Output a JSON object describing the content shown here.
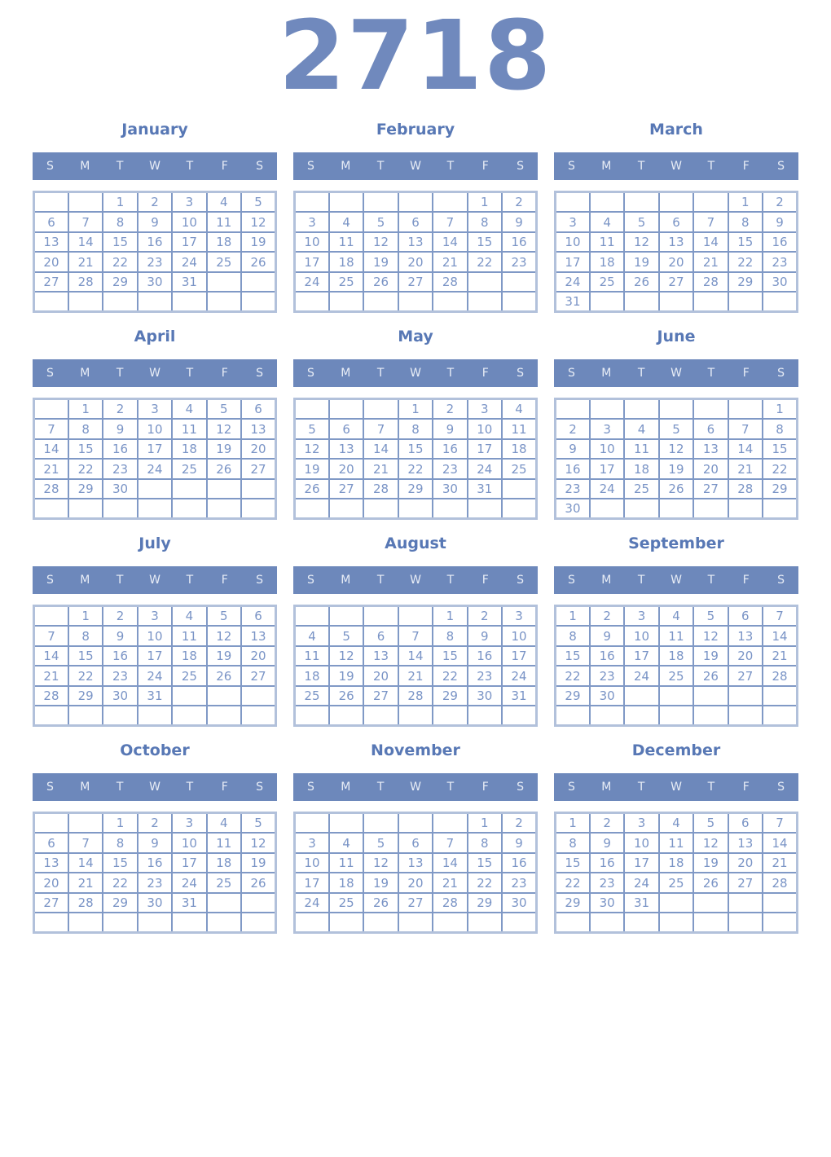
{
  "year": "2718",
  "weekdays": [
    "S",
    "M",
    "T",
    "W",
    "T",
    "F",
    "S"
  ],
  "colors": {
    "band": "#6d88bb",
    "band_text": "#e8edf6",
    "date_text": "#7a94c6",
    "month_title": "#5878b5",
    "year_title": "#7089bd",
    "grid_outer_border": "#b2c1db",
    "grid_inner_border": "#8099c6"
  },
  "months": [
    {
      "name": "January",
      "weeks": [
        [
          "",
          "",
          "1",
          "2",
          "3",
          "4",
          "5"
        ],
        [
          "6",
          "7",
          "8",
          "9",
          "10",
          "11",
          "12"
        ],
        [
          "13",
          "14",
          "15",
          "16",
          "17",
          "18",
          "19"
        ],
        [
          "20",
          "21",
          "22",
          "23",
          "24",
          "25",
          "26"
        ],
        [
          "27",
          "28",
          "29",
          "30",
          "31",
          "",
          ""
        ],
        [
          "",
          "",
          "",
          "",
          "",
          "",
          ""
        ]
      ]
    },
    {
      "name": "February",
      "weeks": [
        [
          "",
          "",
          "",
          "",
          "",
          "1",
          "2"
        ],
        [
          "3",
          "4",
          "5",
          "6",
          "7",
          "8",
          "9"
        ],
        [
          "10",
          "11",
          "12",
          "13",
          "14",
          "15",
          "16"
        ],
        [
          "17",
          "18",
          "19",
          "20",
          "21",
          "22",
          "23"
        ],
        [
          "24",
          "25",
          "26",
          "27",
          "28",
          "",
          ""
        ],
        [
          "",
          "",
          "",
          "",
          "",
          "",
          ""
        ]
      ]
    },
    {
      "name": "March",
      "weeks": [
        [
          "",
          "",
          "",
          "",
          "",
          "1",
          "2"
        ],
        [
          "3",
          "4",
          "5",
          "6",
          "7",
          "8",
          "9"
        ],
        [
          "10",
          "11",
          "12",
          "13",
          "14",
          "15",
          "16"
        ],
        [
          "17",
          "18",
          "19",
          "20",
          "21",
          "22",
          "23"
        ],
        [
          "24",
          "25",
          "26",
          "27",
          "28",
          "29",
          "30"
        ],
        [
          "31",
          "",
          "",
          "",
          "",
          "",
          ""
        ]
      ]
    },
    {
      "name": "April",
      "weeks": [
        [
          "",
          "1",
          "2",
          "3",
          "4",
          "5",
          "6"
        ],
        [
          "7",
          "8",
          "9",
          "10",
          "11",
          "12",
          "13"
        ],
        [
          "14",
          "15",
          "16",
          "17",
          "18",
          "19",
          "20"
        ],
        [
          "21",
          "22",
          "23",
          "24",
          "25",
          "26",
          "27"
        ],
        [
          "28",
          "29",
          "30",
          "",
          "",
          "",
          ""
        ],
        [
          "",
          "",
          "",
          "",
          "",
          "",
          ""
        ]
      ]
    },
    {
      "name": "May",
      "weeks": [
        [
          "",
          "",
          "",
          "1",
          "2",
          "3",
          "4"
        ],
        [
          "5",
          "6",
          "7",
          "8",
          "9",
          "10",
          "11"
        ],
        [
          "12",
          "13",
          "14",
          "15",
          "16",
          "17",
          "18"
        ],
        [
          "19",
          "20",
          "21",
          "22",
          "23",
          "24",
          "25"
        ],
        [
          "26",
          "27",
          "28",
          "29",
          "30",
          "31",
          ""
        ],
        [
          "",
          "",
          "",
          "",
          "",
          "",
          ""
        ]
      ]
    },
    {
      "name": "June",
      "weeks": [
        [
          "",
          "",
          "",
          "",
          "",
          "",
          "1"
        ],
        [
          "2",
          "3",
          "4",
          "5",
          "6",
          "7",
          "8"
        ],
        [
          "9",
          "10",
          "11",
          "12",
          "13",
          "14",
          "15"
        ],
        [
          "16",
          "17",
          "18",
          "19",
          "20",
          "21",
          "22"
        ],
        [
          "23",
          "24",
          "25",
          "26",
          "27",
          "28",
          "29"
        ],
        [
          "30",
          "",
          "",
          "",
          "",
          "",
          ""
        ]
      ]
    },
    {
      "name": "July",
      "weeks": [
        [
          "",
          "1",
          "2",
          "3",
          "4",
          "5",
          "6"
        ],
        [
          "7",
          "8",
          "9",
          "10",
          "11",
          "12",
          "13"
        ],
        [
          "14",
          "15",
          "16",
          "17",
          "18",
          "19",
          "20"
        ],
        [
          "21",
          "22",
          "23",
          "24",
          "25",
          "26",
          "27"
        ],
        [
          "28",
          "29",
          "30",
          "31",
          "",
          "",
          ""
        ],
        [
          "",
          "",
          "",
          "",
          "",
          "",
          ""
        ]
      ]
    },
    {
      "name": "August",
      "weeks": [
        [
          "",
          "",
          "",
          "",
          "1",
          "2",
          "3"
        ],
        [
          "4",
          "5",
          "6",
          "7",
          "8",
          "9",
          "10"
        ],
        [
          "11",
          "12",
          "13",
          "14",
          "15",
          "16",
          "17"
        ],
        [
          "18",
          "19",
          "20",
          "21",
          "22",
          "23",
          "24"
        ],
        [
          "25",
          "26",
          "27",
          "28",
          "29",
          "30",
          "31"
        ],
        [
          "",
          "",
          "",
          "",
          "",
          "",
          ""
        ]
      ]
    },
    {
      "name": "September",
      "weeks": [
        [
          "1",
          "2",
          "3",
          "4",
          "5",
          "6",
          "7"
        ],
        [
          "8",
          "9",
          "10",
          "11",
          "12",
          "13",
          "14"
        ],
        [
          "15",
          "16",
          "17",
          "18",
          "19",
          "20",
          "21"
        ],
        [
          "22",
          "23",
          "24",
          "25",
          "26",
          "27",
          "28"
        ],
        [
          "29",
          "30",
          "",
          "",
          "",
          "",
          ""
        ],
        [
          "",
          "",
          "",
          "",
          "",
          "",
          ""
        ]
      ]
    },
    {
      "name": "October",
      "weeks": [
        [
          "",
          "",
          "1",
          "2",
          "3",
          "4",
          "5"
        ],
        [
          "6",
          "7",
          "8",
          "9",
          "10",
          "11",
          "12"
        ],
        [
          "13",
          "14",
          "15",
          "16",
          "17",
          "18",
          "19"
        ],
        [
          "20",
          "21",
          "22",
          "23",
          "24",
          "25",
          "26"
        ],
        [
          "27",
          "28",
          "29",
          "30",
          "31",
          "",
          ""
        ],
        [
          "",
          "",
          "",
          "",
          "",
          "",
          ""
        ]
      ]
    },
    {
      "name": "November",
      "weeks": [
        [
          "",
          "",
          "",
          "",
          "",
          "1",
          "2"
        ],
        [
          "3",
          "4",
          "5",
          "6",
          "7",
          "8",
          "9"
        ],
        [
          "10",
          "11",
          "12",
          "13",
          "14",
          "15",
          "16"
        ],
        [
          "17",
          "18",
          "19",
          "20",
          "21",
          "22",
          "23"
        ],
        [
          "24",
          "25",
          "26",
          "27",
          "28",
          "29",
          "30"
        ],
        [
          "",
          "",
          "",
          "",
          "",
          "",
          ""
        ]
      ]
    },
    {
      "name": "December",
      "weeks": [
        [
          "1",
          "2",
          "3",
          "4",
          "5",
          "6",
          "7"
        ],
        [
          "8",
          "9",
          "10",
          "11",
          "12",
          "13",
          "14"
        ],
        [
          "15",
          "16",
          "17",
          "18",
          "19",
          "20",
          "21"
        ],
        [
          "22",
          "23",
          "24",
          "25",
          "26",
          "27",
          "28"
        ],
        [
          "29",
          "30",
          "31",
          "",
          "",
          "",
          ""
        ],
        [
          "",
          "",
          "",
          "",
          "",
          "",
          ""
        ]
      ]
    }
  ]
}
